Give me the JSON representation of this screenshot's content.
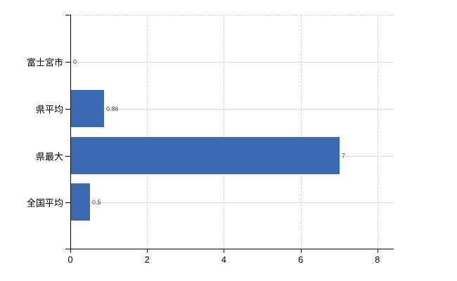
{
  "chart_data": {
    "type": "bar",
    "orientation": "horizontal",
    "title": "",
    "xlabel": "",
    "ylabel": "",
    "categories": [
      "富士宮市",
      "県平均",
      "県最大",
      "全国平均"
    ],
    "values": [
      0,
      0.86,
      7,
      0.5
    ],
    "value_labels": [
      "0",
      "0.86",
      "7",
      "0.5"
    ],
    "x_ticks": [
      0,
      2,
      4,
      6,
      8
    ],
    "x_tick_labels": [
      "0",
      "2",
      "4",
      "6",
      "8"
    ],
    "xlim": [
      0,
      8.4
    ],
    "grid": true,
    "legend": false,
    "bar_color": "#3a6ab0",
    "axis_color": "#000000",
    "gridline_color": "#d9d9d9"
  },
  "layout_values": {
    "note": "single horizontal bar chart, no title, no legend"
  }
}
